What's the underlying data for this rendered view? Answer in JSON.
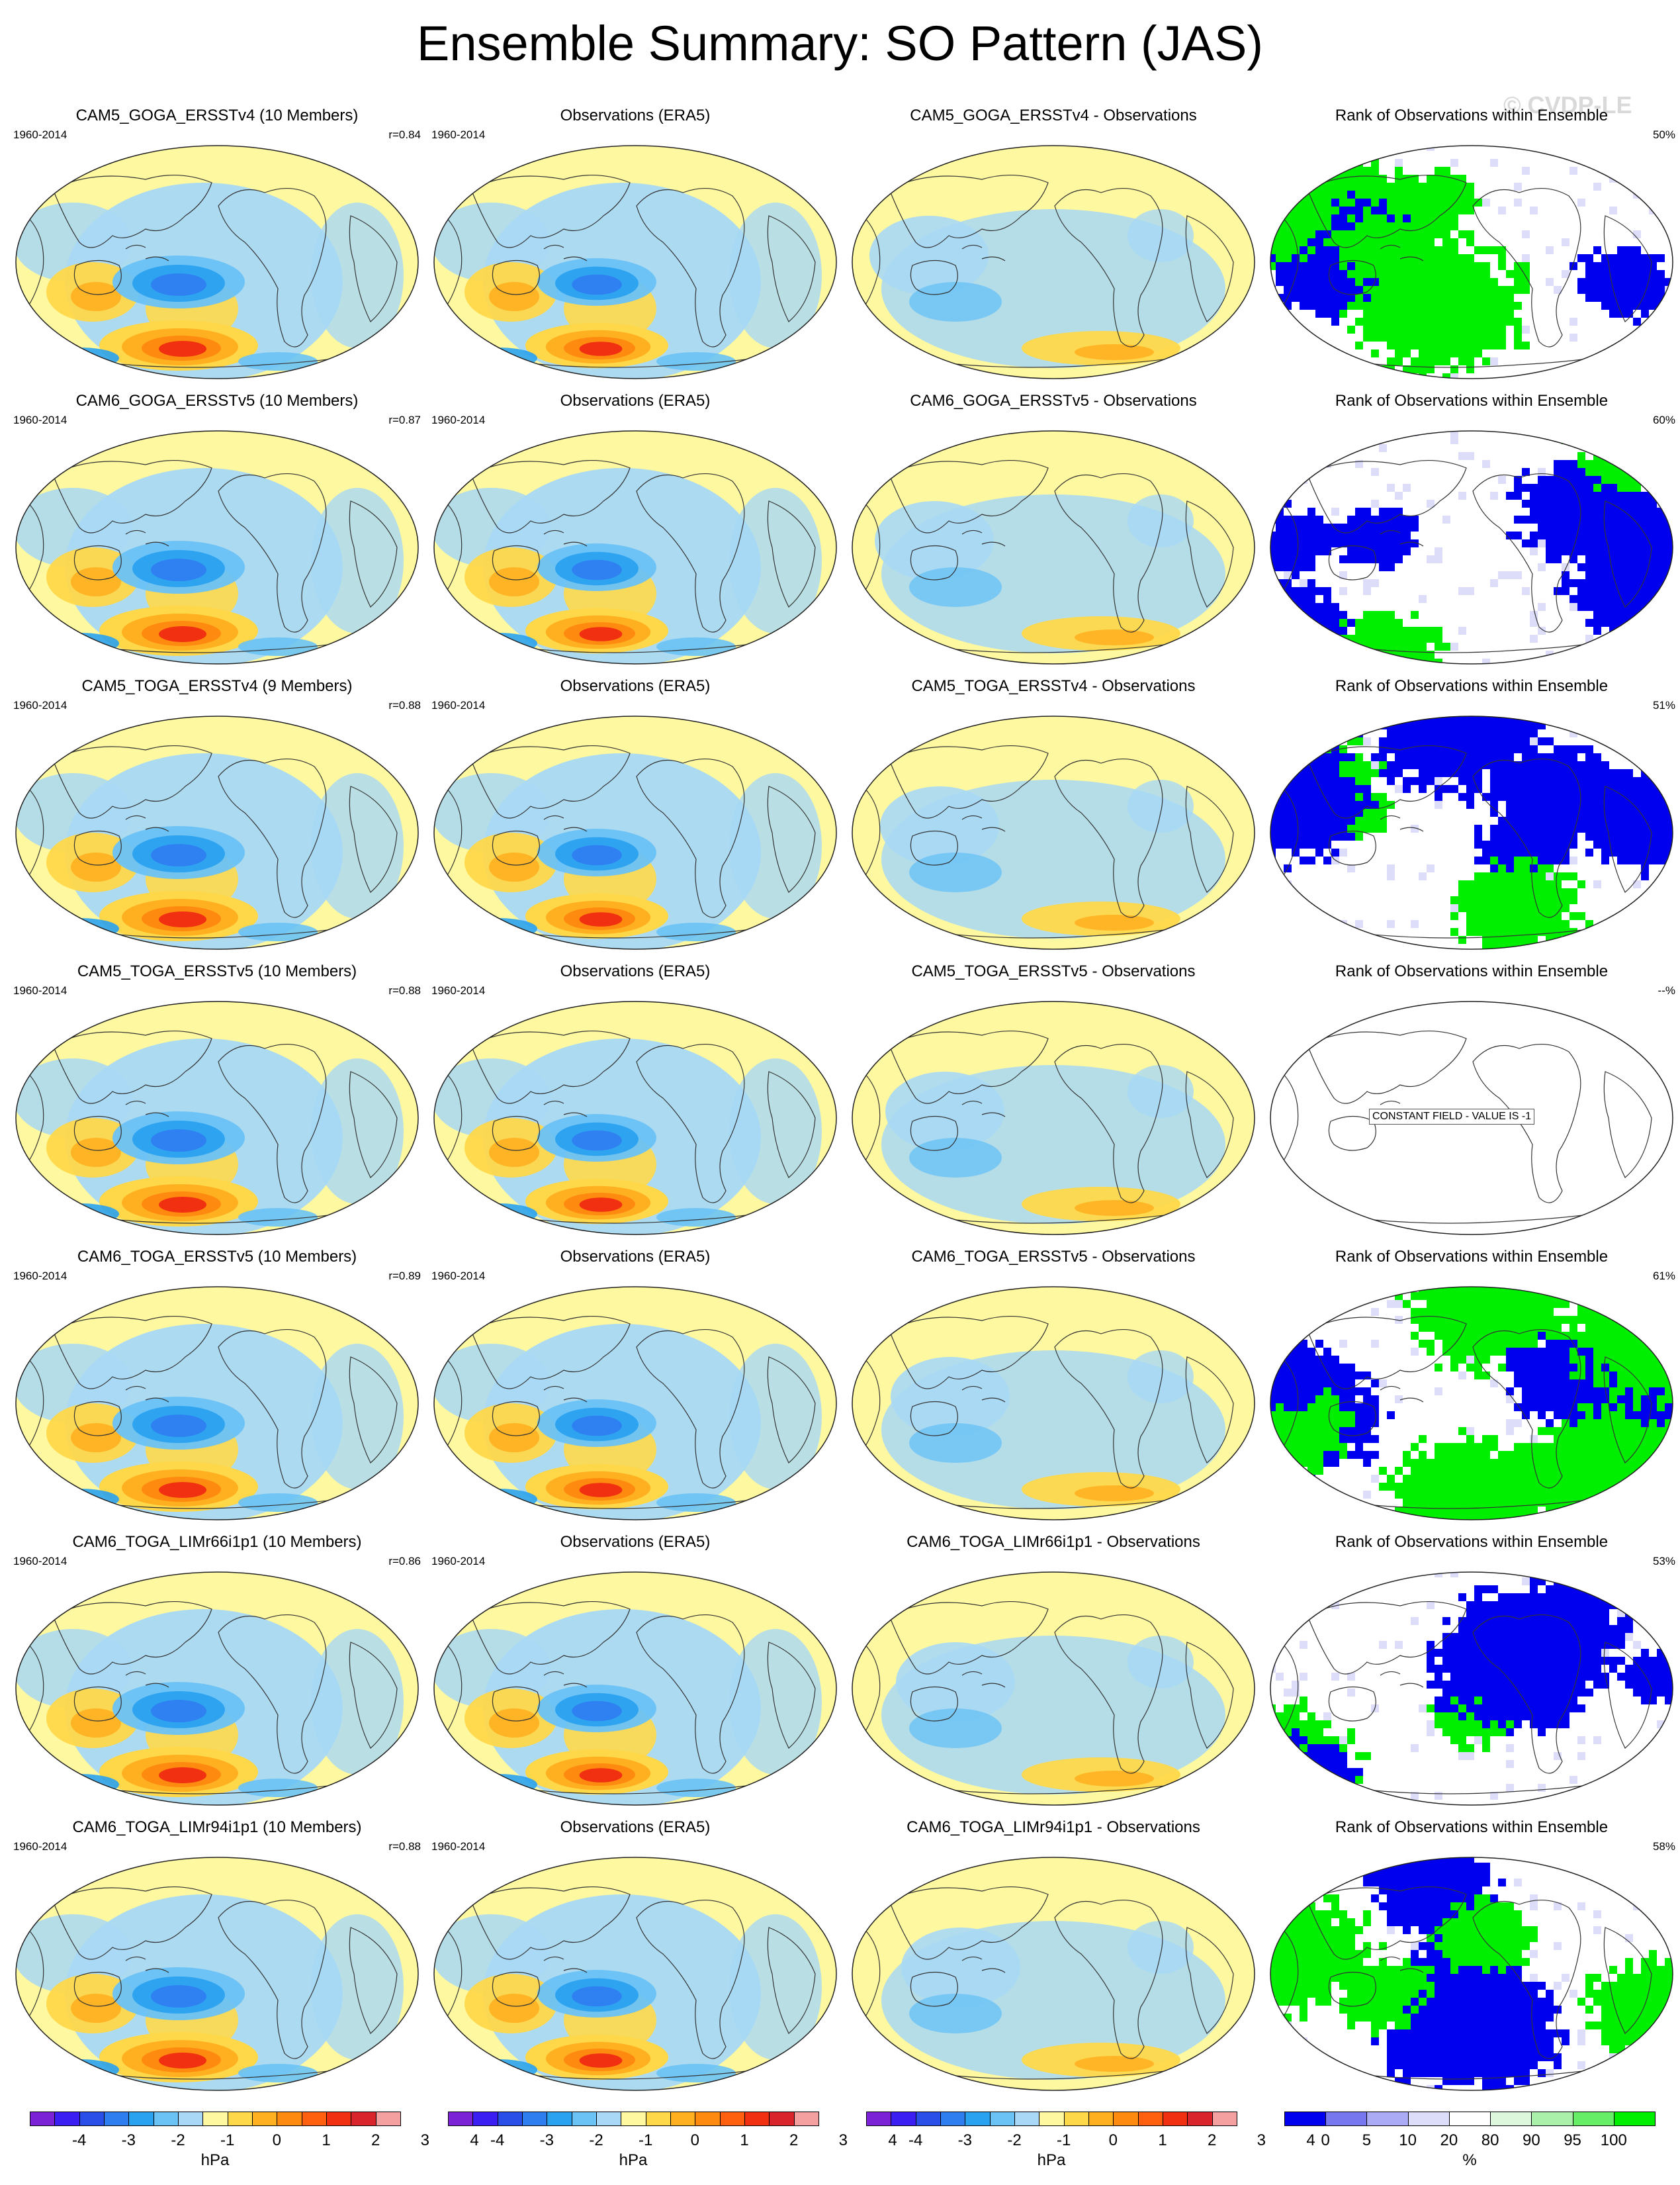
{
  "title": "Ensemble Summary: SO Pattern (JAS)",
  "watermark": "© CVDP-LE",
  "years": "1960-2014",
  "rows": [
    {
      "model": "CAM5_GOGA_ERSSTv4 (10 Members)",
      "corr": "r=0.84",
      "obs": "Observations (ERA5)",
      "diff": "CAM5_GOGA_ERSSTv4 - Observations",
      "rank": "Rank of Observations within Ensemble",
      "pct": "50%",
      "variant": 0
    },
    {
      "model": "CAM6_GOGA_ERSSTv5 (10 Members)",
      "corr": "r=0.87",
      "obs": "Observations (ERA5)",
      "diff": "CAM6_GOGA_ERSSTv5 - Observations",
      "rank": "Rank of Observations within Ensemble",
      "pct": "60%",
      "variant": 1
    },
    {
      "model": "CAM5_TOGA_ERSSTv4 (9 Members)",
      "corr": "r=0.88",
      "obs": "Observations (ERA5)",
      "diff": "CAM5_TOGA_ERSSTv4 - Observations",
      "rank": "Rank of Observations within Ensemble",
      "pct": "51%",
      "variant": 2
    },
    {
      "model": "CAM5_TOGA_ERSSTv5 (10 Members)",
      "corr": "r=0.88",
      "obs": "Observations (ERA5)",
      "diff": "CAM5_TOGA_ERSSTv5 - Observations",
      "rank": "Rank of Observations within Ensemble",
      "pct": "--%",
      "variant": 3,
      "constant_note": "CONSTANT FIELD - VALUE IS -1"
    },
    {
      "model": "CAM6_TOGA_ERSSTv5 (10 Members)",
      "corr": "r=0.89",
      "obs": "Observations (ERA5)",
      "diff": "CAM6_TOGA_ERSSTv5 - Observations",
      "rank": "Rank of Observations within Ensemble",
      "pct": "61%",
      "variant": 4
    },
    {
      "model": "CAM6_TOGA_LIMr66i1p1 (10 Members)",
      "corr": "r=0.86",
      "obs": "Observations (ERA5)",
      "diff": "CAM6_TOGA_LIMr66i1p1 - Observations",
      "rank": "Rank of Observations within Ensemble",
      "pct": "53%",
      "variant": 5
    },
    {
      "model": "CAM6_TOGA_LIMr94i1p1 (10 Members)",
      "corr": "r=0.88",
      "obs": "Observations (ERA5)",
      "diff": "CAM6_TOGA_LIMr94i1p1 - Observations",
      "rank": "Rank of Observations within Ensemble",
      "pct": "58%",
      "variant": 6
    }
  ],
  "colorbars": [
    {
      "unit": "hPa",
      "labels": [
        "-4",
        "-3",
        "-2",
        "-1",
        "0",
        "1",
        "2",
        "3",
        "4"
      ]
    },
    {
      "unit": "hPa",
      "labels": [
        "-4",
        "-3",
        "-2",
        "-1",
        "0",
        "1",
        "2",
        "3",
        "4"
      ]
    },
    {
      "unit": "hPa",
      "labels": [
        "-4",
        "-3",
        "-2",
        "-1",
        "0",
        "1",
        "2",
        "3",
        "4"
      ]
    },
    {
      "unit": "%",
      "labels": [
        "0",
        "5",
        "10",
        "20",
        "80",
        "90",
        "95",
        "100"
      ]
    }
  ],
  "colors": {
    "slp_scale": [
      "#7b22d6",
      "#3b1ff2",
      "#2a4fe8",
      "#2f7ef0",
      "#2aa2f0",
      "#6ac2f5",
      "#a8d8f5",
      "#fef8a0",
      "#ffd84a",
      "#ffb020",
      "#ff8a10",
      "#ff6010",
      "#f03010",
      "#d8242a",
      "#f4a0a0"
    ],
    "rank_scale": [
      "#0000ee",
      "#7777f0",
      "#aaaaf5",
      "#ddddfa",
      "#ffffff",
      "#ddf7dd",
      "#aaf0aa",
      "#66ee66",
      "#00ee00"
    ]
  }
}
